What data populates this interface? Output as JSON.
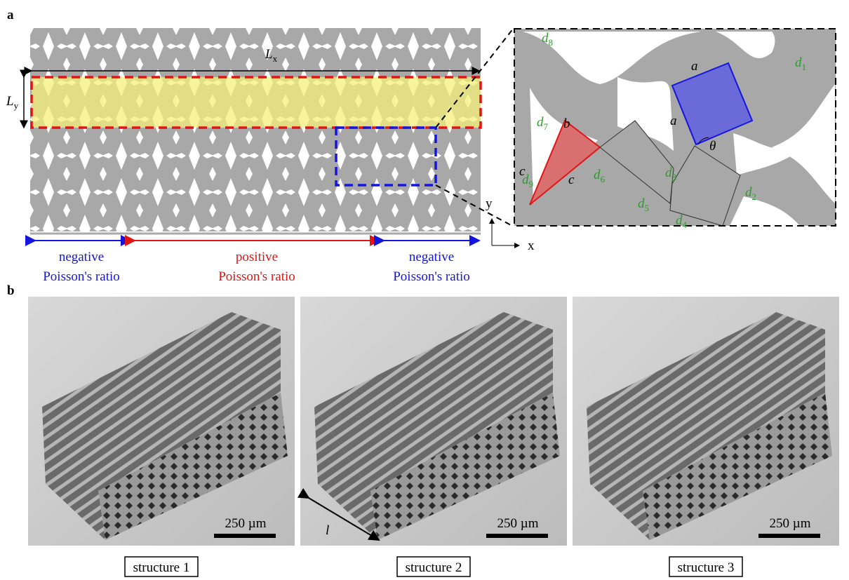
{
  "panel_a": {
    "label": "a",
    "lattice": {
      "lx": {
        "symbol": "L",
        "sub": "x"
      },
      "ly": {
        "symbol": "L",
        "sub": "y"
      }
    },
    "regions": [
      {
        "line1": "negative",
        "line2": "Poisson's ratio"
      },
      {
        "line1": "positive",
        "line2": "Poisson's ratio"
      },
      {
        "line1": "negative",
        "line2": "Poisson's ratio"
      }
    ],
    "axes": {
      "x": "x",
      "y": "y"
    },
    "inset": {
      "params": [
        {
          "symbol": "d",
          "sub": "8"
        },
        {
          "symbol": "d",
          "sub": "1"
        },
        {
          "symbol": "d",
          "sub": "7"
        },
        {
          "symbol": "d",
          "sub": "6"
        },
        {
          "symbol": "d",
          "sub": "3"
        },
        {
          "symbol": "d",
          "sub": "9"
        },
        {
          "symbol": "d",
          "sub": "2"
        },
        {
          "symbol": "d",
          "sub": "5"
        },
        {
          "symbol": "d",
          "sub": "4"
        }
      ],
      "sides": [
        "a",
        "a",
        "b",
        "c",
        "c"
      ],
      "angle": "θ"
    }
  },
  "panel_b": {
    "label": "b",
    "length": "l",
    "photos": [
      {
        "scale_bar": "250 µm",
        "caption": "structure 1"
      },
      {
        "scale_bar": "250 µm",
        "caption": "structure 2"
      },
      {
        "scale_bar": "250 µm",
        "caption": "structure 3"
      }
    ]
  }
}
